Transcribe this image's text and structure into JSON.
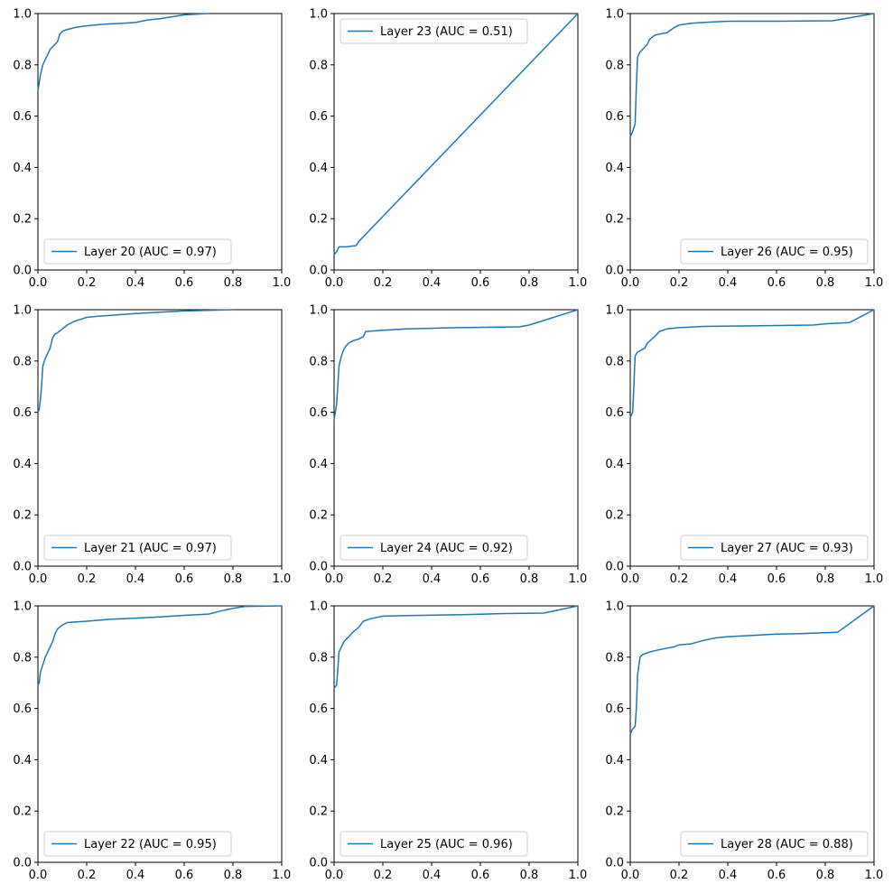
{
  "chart_data": [
    {
      "type": "line",
      "legend": "Layer 20 (AUC = 0.97)",
      "legend_loc": "lower-left",
      "xlim": [
        0,
        1
      ],
      "ylim": [
        0,
        1
      ],
      "xticks": [
        "0.0",
        "0.2",
        "0.4",
        "0.6",
        "0.8",
        "1.0"
      ],
      "yticks": [
        "0.0",
        "0.2",
        "0.4",
        "0.6",
        "0.8",
        "1.0"
      ],
      "x": [
        0,
        0.005,
        0.01,
        0.015,
        0.02,
        0.03,
        0.04,
        0.05,
        0.06,
        0.07,
        0.08,
        0.09,
        0.1,
        0.11,
        0.13,
        0.15,
        0.18,
        0.2,
        0.25,
        0.3,
        0.35,
        0.4,
        0.45,
        0.5,
        0.6,
        0.7
      ],
      "y": [
        0.7,
        0.73,
        0.76,
        0.78,
        0.8,
        0.82,
        0.84,
        0.86,
        0.87,
        0.88,
        0.89,
        0.92,
        0.93,
        0.935,
        0.94,
        0.945,
        0.95,
        0.952,
        0.957,
        0.96,
        0.962,
        0.965,
        0.975,
        0.98,
        0.995,
        1.0
      ]
    },
    {
      "type": "line",
      "legend": "Layer 23 (AUC = 0.51)",
      "legend_loc": "upper-left",
      "xlim": [
        0,
        1
      ],
      "ylim": [
        0,
        1
      ],
      "xticks": [
        "0.0",
        "0.2",
        "0.4",
        "0.6",
        "0.8",
        "1.0"
      ],
      "yticks": [
        "0.0",
        "0.2",
        "0.4",
        "0.6",
        "0.8",
        "1.0"
      ],
      "x": [
        0,
        0.01,
        0.02,
        0.05,
        0.09,
        0.1,
        1.0
      ],
      "y": [
        0.06,
        0.07,
        0.09,
        0.09,
        0.095,
        0.11,
        1.0
      ]
    },
    {
      "type": "line",
      "legend": "Layer 26 (AUC = 0.95)",
      "legend_loc": "lower-right",
      "xlim": [
        0,
        1
      ],
      "ylim": [
        0,
        1
      ],
      "xticks": [
        "0.0",
        "0.2",
        "0.4",
        "0.6",
        "0.8",
        "1.0"
      ],
      "yticks": [
        "0.0",
        "0.2",
        "0.4",
        "0.6",
        "0.8",
        "1.0"
      ],
      "x": [
        0,
        0.01,
        0.02,
        0.025,
        0.03,
        0.04,
        0.05,
        0.06,
        0.07,
        0.08,
        0.1,
        0.12,
        0.15,
        0.18,
        0.2,
        0.25,
        0.3,
        0.4,
        0.6,
        0.83,
        1.0
      ],
      "y": [
        0.52,
        0.54,
        0.57,
        0.72,
        0.83,
        0.85,
        0.86,
        0.87,
        0.88,
        0.9,
        0.915,
        0.92,
        0.925,
        0.945,
        0.955,
        0.962,
        0.965,
        0.97,
        0.97,
        0.972,
        1.0
      ]
    },
    {
      "type": "line",
      "legend": "Layer 21 (AUC = 0.97)",
      "legend_loc": "lower-left",
      "xlim": [
        0,
        1
      ],
      "ylim": [
        0,
        1
      ],
      "xticks": [
        "0.0",
        "0.2",
        "0.4",
        "0.6",
        "0.8",
        "1.0"
      ],
      "yticks": [
        "0.0",
        "0.2",
        "0.4",
        "0.6",
        "0.8",
        "1.0"
      ],
      "x": [
        0,
        0.005,
        0.01,
        0.015,
        0.02,
        0.03,
        0.04,
        0.05,
        0.06,
        0.07,
        0.08,
        0.1,
        0.12,
        0.15,
        0.2,
        0.25,
        0.3,
        0.4,
        0.5,
        0.6,
        0.8
      ],
      "y": [
        0.6,
        0.61,
        0.65,
        0.7,
        0.78,
        0.81,
        0.83,
        0.85,
        0.89,
        0.905,
        0.91,
        0.925,
        0.94,
        0.955,
        0.97,
        0.975,
        0.978,
        0.985,
        0.99,
        0.995,
        1.0
      ]
    },
    {
      "type": "line",
      "legend": "Layer 24 (AUC = 0.92)",
      "legend_loc": "lower-left",
      "xlim": [
        0,
        1
      ],
      "ylim": [
        0,
        1
      ],
      "xticks": [
        "0.0",
        "0.2",
        "0.4",
        "0.6",
        "0.8",
        "1.0"
      ],
      "yticks": [
        "0.0",
        "0.2",
        "0.4",
        "0.6",
        "0.8",
        "1.0"
      ],
      "x": [
        0,
        0.005,
        0.01,
        0.015,
        0.02,
        0.03,
        0.04,
        0.05,
        0.06,
        0.08,
        0.1,
        0.11,
        0.12,
        0.13,
        0.2,
        0.3,
        0.5,
        0.76,
        0.8,
        1.0
      ],
      "y": [
        0.57,
        0.6,
        0.63,
        0.7,
        0.78,
        0.82,
        0.845,
        0.86,
        0.87,
        0.88,
        0.885,
        0.89,
        0.895,
        0.915,
        0.92,
        0.925,
        0.93,
        0.933,
        0.94,
        1.0
      ]
    },
    {
      "type": "line",
      "legend": "Layer 27 (AUC = 0.93)",
      "legend_loc": "lower-right",
      "xlim": [
        0,
        1
      ],
      "ylim": [
        0,
        1
      ],
      "xticks": [
        "0.0",
        "0.2",
        "0.4",
        "0.6",
        "0.8",
        "1.0"
      ],
      "yticks": [
        "0.0",
        "0.2",
        "0.4",
        "0.6",
        "0.8",
        "1.0"
      ],
      "x": [
        0,
        0.01,
        0.015,
        0.02,
        0.03,
        0.05,
        0.06,
        0.07,
        0.1,
        0.12,
        0.15,
        0.2,
        0.3,
        0.5,
        0.75,
        0.8,
        0.9,
        1.0
      ],
      "y": [
        0.58,
        0.6,
        0.7,
        0.82,
        0.835,
        0.845,
        0.85,
        0.87,
        0.895,
        0.915,
        0.925,
        0.93,
        0.935,
        0.937,
        0.94,
        0.945,
        0.95,
        1.0
      ]
    },
    {
      "type": "line",
      "legend": "Layer 22 (AUC = 0.95)",
      "legend_loc": "lower-left",
      "xlim": [
        0,
        1
      ],
      "ylim": [
        0,
        1
      ],
      "xticks": [
        "0.0",
        "0.2",
        "0.4",
        "0.6",
        "0.8",
        "1.0"
      ],
      "yticks": [
        "0.0",
        "0.2",
        "0.4",
        "0.6",
        "0.8",
        "1.0"
      ],
      "x": [
        0,
        0.005,
        0.01,
        0.02,
        0.03,
        0.04,
        0.05,
        0.06,
        0.07,
        0.08,
        0.1,
        0.12,
        0.15,
        0.2,
        0.3,
        0.4,
        0.5,
        0.6,
        0.7,
        0.75,
        0.8,
        0.85,
        1.0
      ],
      "y": [
        0.69,
        0.7,
        0.74,
        0.77,
        0.8,
        0.82,
        0.84,
        0.86,
        0.89,
        0.91,
        0.925,
        0.935,
        0.937,
        0.94,
        0.948,
        0.952,
        0.957,
        0.963,
        0.968,
        0.98,
        0.99,
        0.998,
        1.0
      ]
    },
    {
      "type": "line",
      "legend": "Layer 25 (AUC = 0.96)",
      "legend_loc": "lower-left",
      "xlim": [
        0,
        1
      ],
      "ylim": [
        0,
        1
      ],
      "xticks": [
        "0.0",
        "0.2",
        "0.4",
        "0.6",
        "0.8",
        "1.0"
      ],
      "yticks": [
        "0.0",
        "0.2",
        "0.4",
        "0.6",
        "0.8",
        "1.0"
      ],
      "x": [
        0,
        0.01,
        0.015,
        0.02,
        0.03,
        0.04,
        0.05,
        0.06,
        0.08,
        0.1,
        0.12,
        0.15,
        0.2,
        0.3,
        0.5,
        0.7,
        0.86,
        1.0
      ],
      "y": [
        0.68,
        0.69,
        0.75,
        0.82,
        0.84,
        0.86,
        0.87,
        0.88,
        0.9,
        0.915,
        0.94,
        0.95,
        0.96,
        0.962,
        0.965,
        0.97,
        0.972,
        1.0
      ]
    },
    {
      "type": "line",
      "legend": "Layer 28 (AUC = 0.88)",
      "legend_loc": "lower-right",
      "xlim": [
        0,
        1
      ],
      "ylim": [
        0,
        1
      ],
      "xticks": [
        "0.0",
        "0.2",
        "0.4",
        "0.6",
        "0.8",
        "1.0"
      ],
      "yticks": [
        "0.0",
        "0.2",
        "0.4",
        "0.6",
        "0.8",
        "1.0"
      ],
      "x": [
        0,
        0.01,
        0.02,
        0.025,
        0.03,
        0.04,
        0.05,
        0.08,
        0.1,
        0.15,
        0.18,
        0.2,
        0.25,
        0.28,
        0.3,
        0.35,
        0.4,
        0.5,
        0.6,
        0.7,
        0.85,
        1.0
      ],
      "y": [
        0.5,
        0.52,
        0.53,
        0.6,
        0.73,
        0.8,
        0.81,
        0.82,
        0.825,
        0.835,
        0.84,
        0.848,
        0.852,
        0.86,
        0.865,
        0.875,
        0.88,
        0.885,
        0.89,
        0.892,
        0.897,
        1.0
      ]
    }
  ],
  "colors": {
    "series": "#1f77b4",
    "legend_border": "#cccccc"
  }
}
